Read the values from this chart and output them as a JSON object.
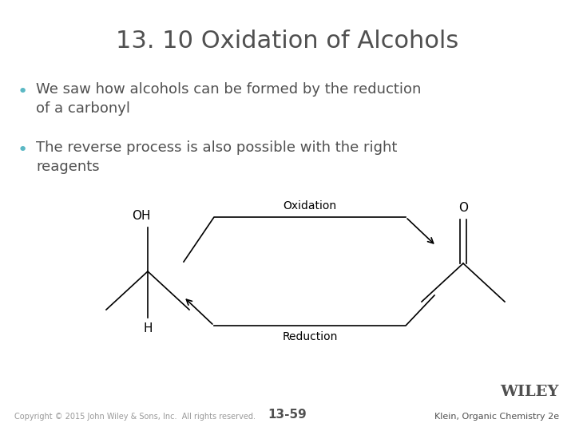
{
  "title": "13. 10 Oxidation of Alcohols",
  "title_color": "#505050",
  "title_fontsize": 22,
  "bullet_color": "#5bb8c4",
  "bullet_text_color": "#505050",
  "bullet_fontsize": 13,
  "bullets": [
    "We saw how alcohols can be formed by the reduction\nof a carbonyl",
    "The reverse process is also possible with the right\nreagents"
  ],
  "oxidation_label": "Oxidation",
  "reduction_label": "Reduction",
  "footer_left": "Copyright © 2015 John Wiley & Sons, Inc.  All rights reserved.",
  "footer_center": "13-59",
  "footer_right": "Klein, Organic Chemistry 2e",
  "wiley_text": "WILEY",
  "bg_color": "#ffffff",
  "arrow_color": "#000000",
  "diagram_label_fontsize": 10,
  "footer_fontsize": 7,
  "wiley_fontsize": 13
}
